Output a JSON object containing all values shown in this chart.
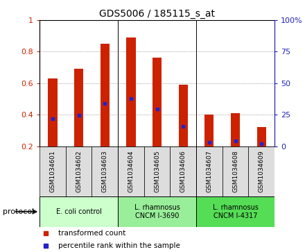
{
  "title": "GDS5006 / 185115_s_at",
  "samples": [
    "GSM1034601",
    "GSM1034602",
    "GSM1034603",
    "GSM1034604",
    "GSM1034605",
    "GSM1034606",
    "GSM1034607",
    "GSM1034608",
    "GSM1034609"
  ],
  "transformed_count": [
    0.63,
    0.69,
    0.85,
    0.89,
    0.76,
    0.59,
    0.4,
    0.41,
    0.32
  ],
  "percentile_rank": [
    0.375,
    0.395,
    0.47,
    0.5,
    0.435,
    0.325,
    0.225,
    0.235,
    0.215
  ],
  "bar_bottom": 0.2,
  "bar_color": "#cc2200",
  "percentile_color": "#2222cc",
  "ylim_left": [
    0.2,
    1.0
  ],
  "ylim_right": [
    0,
    100
  ],
  "yticks_left": [
    0.2,
    0.4,
    0.6,
    0.8,
    1.0
  ],
  "yticks_right": [
    0,
    25,
    50,
    75,
    100
  ],
  "ytick_labels_left": [
    "0.2",
    "0.4",
    "0.6",
    "0.8",
    "1"
  ],
  "ytick_labels_right": [
    "0",
    "25",
    "50",
    "75",
    "100%"
  ],
  "groups": [
    {
      "label": "E. coli control",
      "cols": 3,
      "color": "#ccffcc"
    },
    {
      "label": "L. rhamnosus\nCNCM I-3690",
      "cols": 3,
      "color": "#99ee99"
    },
    {
      "label": "L. rhamnosus\nCNCM I-4317",
      "cols": 3,
      "color": "#55dd55"
    }
  ],
  "protocol_label": "protocol",
  "legend_items": [
    {
      "color": "#cc2200",
      "label": "transformed count"
    },
    {
      "color": "#2222cc",
      "label": "percentile rank within the sample"
    }
  ],
  "bar_width": 0.35,
  "left_tick_color": "#cc2200",
  "right_tick_color": "#2222bb",
  "sample_col_color": "#dddddd",
  "grid_color": "gray",
  "grid_style": ":"
}
